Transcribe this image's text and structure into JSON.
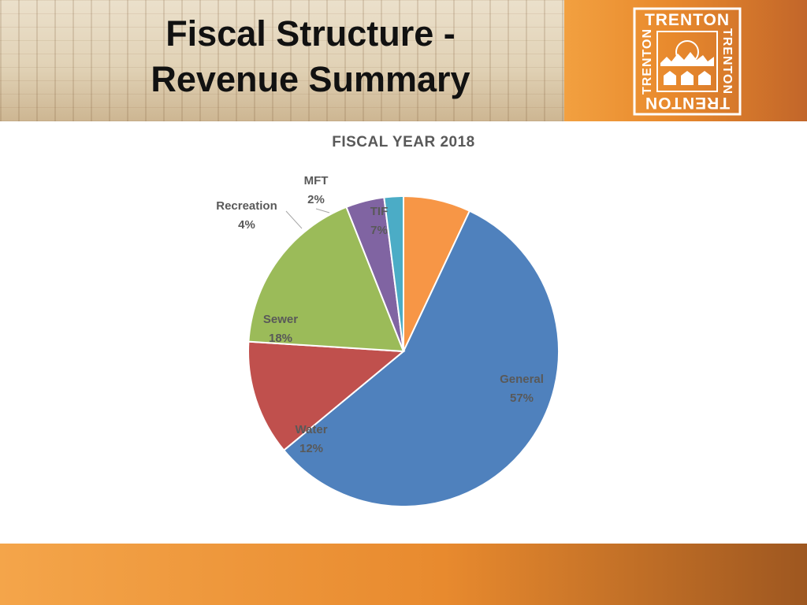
{
  "slide": {
    "title_line1": "Fiscal Structure -",
    "title_line2": "Revenue Summary",
    "logo_text": "TRENTON"
  },
  "colors": {
    "accent_orange": "#e88a2e",
    "title_text": "#111111",
    "label_text": "#595959"
  },
  "chart_data": {
    "type": "pie",
    "title": "FISCAL YEAR 2018",
    "categories": [
      "General",
      "Water",
      "Sewer",
      "Recreation",
      "MFT",
      "TIF"
    ],
    "values": [
      57,
      12,
      18,
      4,
      2,
      7
    ],
    "value_labels": [
      "57%",
      "12%",
      "18%",
      "4%",
      "2%",
      "7%"
    ],
    "colors": [
      "#4f81bd",
      "#c0504d",
      "#9bbb59",
      "#8064a2",
      "#4bacc6",
      "#f79646"
    ],
    "start_angle": "12 o'clock",
    "direction": "clockwise",
    "legend": "none",
    "data_labels": "category and percent"
  }
}
